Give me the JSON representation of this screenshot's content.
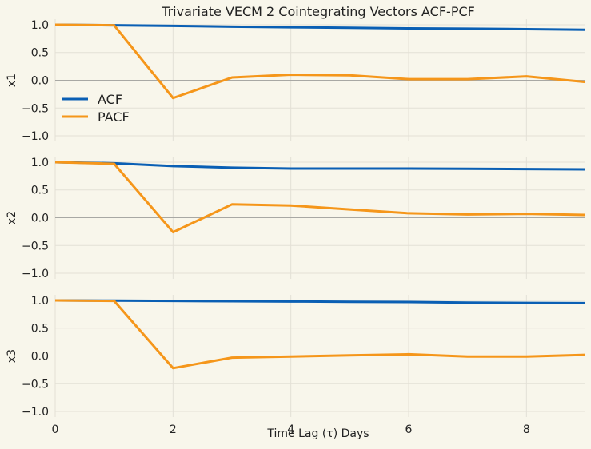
{
  "chart_data": {
    "type": "line",
    "title": "Trivariate VECM 2 Cointegrating Vectors ACF-PCF",
    "xlabel": "Time Lag (τ) Days",
    "xlim": [
      0,
      9
    ],
    "x_ticks": [
      0,
      2,
      4,
      6,
      8
    ],
    "ylim": [
      -1.1,
      1.1
    ],
    "y_ticks": [
      1.0,
      0.5,
      0.0,
      -0.5,
      -1.0
    ],
    "y_tick_labels": [
      "1.0",
      "0.5",
      "0.0",
      "−0.5",
      "−1.0"
    ],
    "x": [
      0,
      1,
      2,
      3,
      4,
      5,
      6,
      7,
      8,
      9
    ],
    "grid": true,
    "legend": {
      "placement": "left",
      "entries": [
        "ACF",
        "PACF"
      ]
    },
    "colors": {
      "ACF": "#0a5fb4",
      "PACF": "#f5961a",
      "background": "#f8f6eb"
    },
    "panels": [
      {
        "ylabel": "x1",
        "series": [
          {
            "name": "ACF",
            "values": [
              1.0,
              0.99,
              0.98,
              0.965,
              0.955,
              0.945,
              0.935,
              0.93,
              0.92,
              0.91
            ]
          },
          {
            "name": "PACF",
            "values": [
              1.0,
              0.99,
              -0.32,
              0.05,
              0.1,
              0.09,
              0.02,
              0.02,
              0.07,
              -0.03
            ]
          }
        ]
      },
      {
        "ylabel": "x2",
        "series": [
          {
            "name": "ACF",
            "values": [
              1.0,
              0.98,
              0.93,
              0.9,
              0.885,
              0.885,
              0.885,
              0.88,
              0.875,
              0.87
            ]
          },
          {
            "name": "PACF",
            "values": [
              1.0,
              0.97,
              -0.26,
              0.24,
              0.22,
              0.15,
              0.08,
              0.06,
              0.07,
              0.05
            ]
          }
        ]
      },
      {
        "ylabel": "x3",
        "series": [
          {
            "name": "ACF",
            "values": [
              1.0,
              0.995,
              0.99,
              0.985,
              0.98,
              0.975,
              0.97,
              0.96,
              0.955,
              0.95
            ]
          },
          {
            "name": "PACF",
            "values": [
              1.0,
              0.99,
              -0.22,
              -0.03,
              -0.01,
              0.01,
              0.03,
              -0.01,
              -0.01,
              0.02
            ]
          }
        ]
      }
    ]
  }
}
